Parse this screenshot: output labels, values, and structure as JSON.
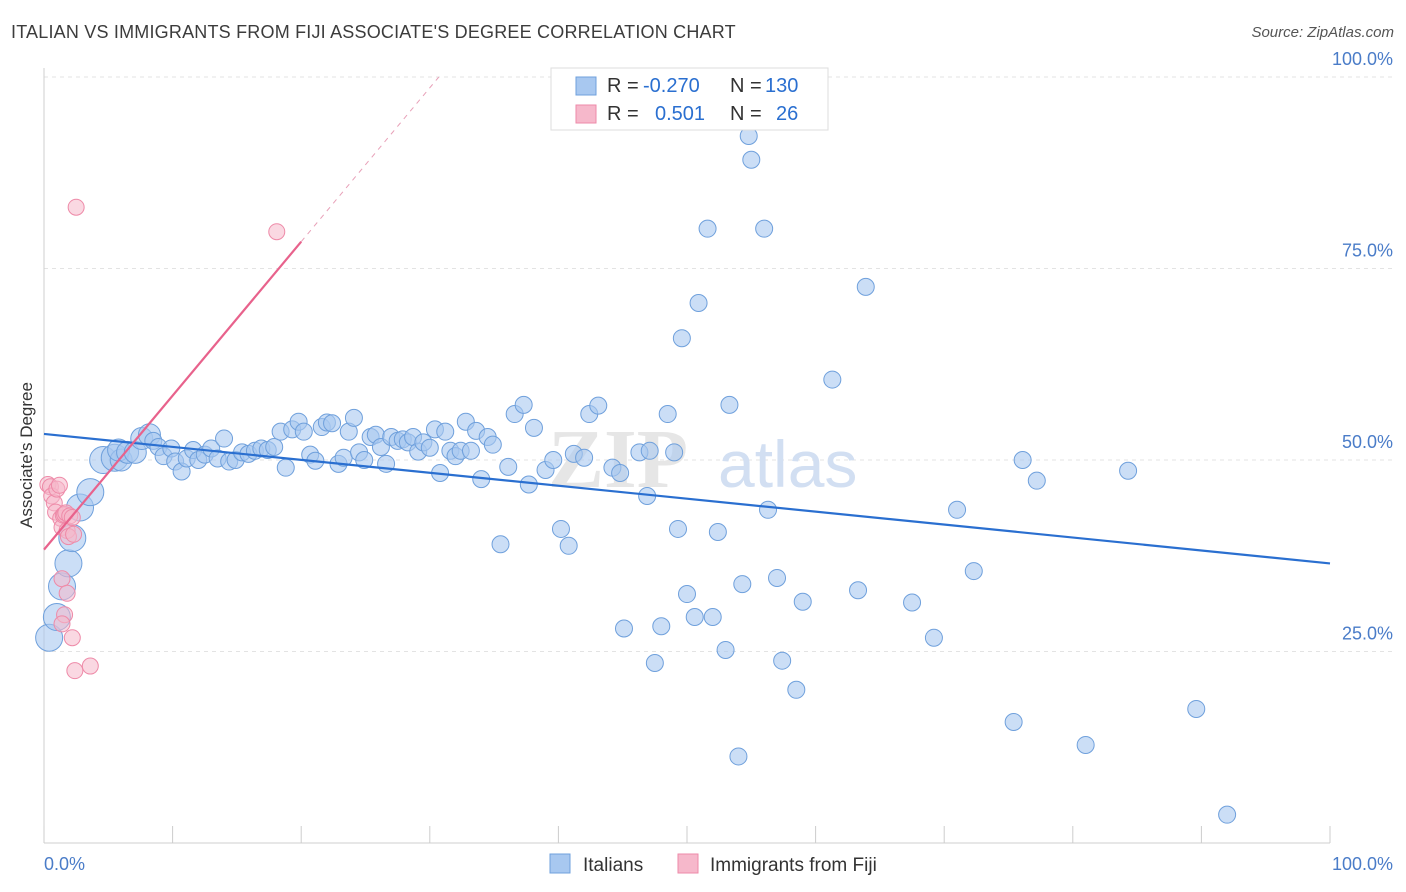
{
  "title": "ITALIAN VS IMMIGRANTS FROM FIJI ASSOCIATE'S DEGREE CORRELATION CHART",
  "source": "Source: ZipAtlas.com",
  "watermark": {
    "zip": "ZIP",
    "atlas": "atlas"
  },
  "colors": {
    "blue_fill": "#a8c8f0",
    "blue_stroke": "#6fa0dc",
    "blue_line": "#2a6fd0",
    "pink_fill": "#f6b8cb",
    "pink_stroke": "#ee8aa8",
    "pink_line": "#e8628c",
    "tick_text": "#4a7cc8",
    "grid": "#e3e3e3"
  },
  "legend_top": {
    "rows": [
      {
        "r_label": "R =",
        "r_value": "-0.270",
        "n_label": "N =",
        "n_value": "130"
      },
      {
        "r_label": "R =",
        "r_value": "0.501",
        "n_label": "N =",
        "n_value": "26"
      }
    ]
  },
  "legend_bottom": [
    "Italians",
    "Immigrants from Fiji"
  ],
  "chart_data": {
    "type": "scatter",
    "title": "ITALIAN VS IMMIGRANTS FROM FIJI ASSOCIATE'S DEGREE CORRELATION CHART",
    "xlabel": "",
    "ylabel": "Associate's Degree",
    "xlim": [
      0,
      100
    ],
    "ylim": [
      0,
      100
    ],
    "x_tick_labels": [
      "0.0%",
      "100.0%"
    ],
    "y_tick_labels": [
      "25.0%",
      "50.0%",
      "75.0%",
      "100.0%"
    ],
    "y_ticks": [
      25,
      50,
      75,
      100
    ],
    "grid": "horizontal dashed",
    "legend_placement": "top-center and bottom",
    "series": [
      {
        "name": "Italians",
        "r": -0.27,
        "n": 130,
        "trend": {
          "x": [
            0,
            100
          ],
          "y": [
            53.4,
            36.5
          ]
        },
        "points": [
          [
            0.4,
            26.8,
            3
          ],
          [
            1.0,
            29.5,
            3
          ],
          [
            1.4,
            33.5,
            3
          ],
          [
            1.9,
            36.5,
            3
          ],
          [
            2.2,
            39.8,
            3
          ],
          [
            2.8,
            43.8,
            3
          ],
          [
            3.6,
            45.8,
            3
          ],
          [
            4.6,
            50.0,
            3
          ],
          [
            5.5,
            50.3,
            3
          ],
          [
            6.0,
            50.0,
            2
          ],
          [
            5.8,
            51.3,
            2
          ],
          [
            6.5,
            51.0,
            2
          ],
          [
            7.1,
            51.0,
            2
          ],
          [
            7.6,
            52.8,
            2
          ],
          [
            8.2,
            53.3,
            2
          ],
          [
            8.5,
            52.5,
            1
          ],
          [
            8.9,
            51.7,
            1
          ],
          [
            9.3,
            50.5,
            1
          ],
          [
            9.9,
            51.5,
            1
          ],
          [
            10.2,
            49.8,
            1
          ],
          [
            10.7,
            48.5,
            1
          ],
          [
            11.1,
            50.2,
            1
          ],
          [
            11.6,
            51.3,
            1
          ],
          [
            12.0,
            50.0,
            1
          ],
          [
            12.5,
            50.7,
            1
          ],
          [
            13.0,
            51.5,
            1
          ],
          [
            13.5,
            50.2,
            1
          ],
          [
            14.0,
            52.8,
            1
          ],
          [
            14.4,
            49.8,
            1
          ],
          [
            14.9,
            50.0,
            1
          ],
          [
            15.4,
            51.0,
            1
          ],
          [
            15.9,
            50.8,
            1
          ],
          [
            16.4,
            51.2,
            1
          ],
          [
            16.9,
            51.5,
            1
          ],
          [
            17.4,
            51.3,
            1
          ],
          [
            17.9,
            51.7,
            1
          ],
          [
            18.4,
            53.7,
            1
          ],
          [
            18.8,
            49.0,
            1
          ],
          [
            19.3,
            54.0,
            1
          ],
          [
            19.8,
            55.0,
            1
          ],
          [
            20.2,
            53.7,
            1
          ],
          [
            20.7,
            50.7,
            1
          ],
          [
            21.1,
            49.9,
            1
          ],
          [
            21.6,
            54.3,
            1
          ],
          [
            22.0,
            54.9,
            1
          ],
          [
            22.4,
            54.8,
            1
          ],
          [
            22.9,
            49.5,
            1
          ],
          [
            23.3,
            50.3,
            1
          ],
          [
            23.7,
            53.7,
            1
          ],
          [
            24.1,
            55.5,
            1
          ],
          [
            24.5,
            51.0,
            1
          ],
          [
            24.9,
            50.0,
            1
          ],
          [
            25.4,
            53.0,
            1
          ],
          [
            25.8,
            53.3,
            1
          ],
          [
            26.2,
            51.7,
            1
          ],
          [
            26.6,
            49.5,
            1
          ],
          [
            27.0,
            53.0,
            1
          ],
          [
            27.5,
            52.5,
            1
          ],
          [
            27.9,
            52.7,
            1
          ],
          [
            28.3,
            52.3,
            1
          ],
          [
            28.7,
            53.0,
            1
          ],
          [
            29.1,
            51.1,
            1
          ],
          [
            29.5,
            52.3,
            1
          ],
          [
            30.0,
            51.6,
            1
          ],
          [
            30.4,
            54.0,
            1
          ],
          [
            30.8,
            48.3,
            1
          ],
          [
            31.2,
            53.7,
            1
          ],
          [
            31.6,
            51.2,
            1
          ],
          [
            32.0,
            50.5,
            1
          ],
          [
            32.4,
            51.2,
            1
          ],
          [
            32.8,
            55.0,
            1
          ],
          [
            33.2,
            51.2,
            1
          ],
          [
            33.6,
            53.8,
            1
          ],
          [
            34.0,
            47.5,
            1
          ],
          [
            34.5,
            53.0,
            1
          ],
          [
            34.9,
            52.0,
            1
          ],
          [
            36.1,
            49.1,
            1
          ],
          [
            35.5,
            39.0,
            1
          ],
          [
            36.6,
            56.0,
            1
          ],
          [
            37.3,
            57.2,
            1
          ],
          [
            37.7,
            46.8,
            1
          ],
          [
            38.1,
            54.2,
            1
          ],
          [
            39.0,
            48.7,
            1
          ],
          [
            39.6,
            50.0,
            1
          ],
          [
            40.2,
            41.0,
            1
          ],
          [
            40.8,
            38.8,
            1
          ],
          [
            41.2,
            50.8,
            1
          ],
          [
            42.0,
            50.3,
            1
          ],
          [
            42.4,
            56.0,
            1
          ],
          [
            43.1,
            57.1,
            1
          ],
          [
            44.2,
            49.0,
            1
          ],
          [
            44.8,
            48.3,
            1
          ],
          [
            45.1,
            28.0,
            1
          ],
          [
            46.3,
            51.0,
            1
          ],
          [
            46.9,
            45.3,
            1
          ],
          [
            47.1,
            51.2,
            1
          ],
          [
            47.5,
            23.5,
            1
          ],
          [
            48.0,
            28.3,
            1
          ],
          [
            48.5,
            56.0,
            1
          ],
          [
            49.0,
            51.0,
            1
          ],
          [
            49.3,
            41.0,
            1
          ],
          [
            49.6,
            65.9,
            1
          ],
          [
            50.0,
            32.5,
            1
          ],
          [
            50.6,
            29.5,
            1
          ],
          [
            50.9,
            70.5,
            1
          ],
          [
            51.6,
            80.2,
            1
          ],
          [
            52.0,
            29.5,
            1
          ],
          [
            52.4,
            40.6,
            1
          ],
          [
            53.0,
            25.2,
            1
          ],
          [
            53.3,
            57.2,
            1
          ],
          [
            54.0,
            11.3,
            1
          ],
          [
            54.3,
            33.8,
            1
          ],
          [
            54.8,
            92.3,
            1
          ],
          [
            55.0,
            89.2,
            1
          ],
          [
            56.0,
            80.2,
            1
          ],
          [
            56.3,
            43.5,
            1
          ],
          [
            57.0,
            34.6,
            1
          ],
          [
            57.4,
            23.8,
            1
          ],
          [
            58.5,
            20.0,
            1
          ],
          [
            59.0,
            31.5,
            1
          ],
          [
            61.3,
            60.5,
            1
          ],
          [
            63.3,
            33.0,
            1
          ],
          [
            63.9,
            72.6,
            1
          ],
          [
            67.5,
            31.4,
            1
          ],
          [
            69.2,
            26.8,
            1
          ],
          [
            71.0,
            43.5,
            1
          ],
          [
            72.3,
            35.5,
            1
          ],
          [
            75.4,
            15.8,
            1
          ],
          [
            76.1,
            50.0,
            1
          ],
          [
            77.2,
            47.3,
            1
          ],
          [
            81.0,
            12.8,
            1
          ],
          [
            84.3,
            48.6,
            1
          ],
          [
            89.6,
            17.5,
            1
          ],
          [
            92.0,
            3.7,
            1
          ]
        ]
      },
      {
        "name": "Immigrants from Fiji",
        "r": 0.501,
        "n": 26,
        "trend": {
          "x": [
            0,
            20
          ],
          "y": [
            38.3,
            78.5
          ],
          "dashed_extension_to": [
            30.7,
            100
          ]
        },
        "points": [
          [
            0.3,
            46.8
          ],
          [
            0.5,
            46.5
          ],
          [
            0.6,
            45.3
          ],
          [
            0.8,
            44.4
          ],
          [
            0.9,
            43.2
          ],
          [
            1.0,
            46.2
          ],
          [
            1.2,
            46.7
          ],
          [
            1.3,
            42.4
          ],
          [
            1.4,
            41.2
          ],
          [
            1.5,
            42.8
          ],
          [
            1.6,
            42.9
          ],
          [
            1.7,
            43.1
          ],
          [
            1.8,
            40.8
          ],
          [
            1.9,
            40.0
          ],
          [
            2.0,
            42.7
          ],
          [
            2.2,
            42.5
          ],
          [
            2.3,
            40.3
          ],
          [
            1.4,
            34.5
          ],
          [
            1.8,
            32.6
          ],
          [
            1.6,
            29.8
          ],
          [
            1.4,
            28.6
          ],
          [
            2.2,
            26.8
          ],
          [
            2.4,
            22.5
          ],
          [
            3.6,
            23.1
          ],
          [
            2.5,
            83.0
          ],
          [
            18.1,
            79.8
          ]
        ]
      }
    ]
  }
}
